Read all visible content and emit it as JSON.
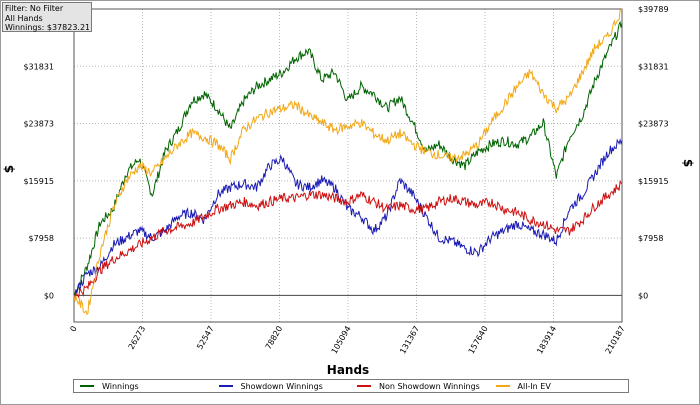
{
  "info": {
    "filter": "Filter: No Filter",
    "hands": "All Hands",
    "winnings": "Winnings: $37823.21"
  },
  "chart_data": {
    "type": "line",
    "xlabel": "Hands",
    "ylabel_left": "$",
    "ylabel_right": "$",
    "xlim": [
      0,
      210187
    ],
    "ylim": [
      -3700,
      39789
    ],
    "x_ticks": [
      0,
      26273,
      52547,
      78820,
      105094,
      131367,
      157640,
      183914,
      210187
    ],
    "y_ticks_left": [
      "$0",
      "$7958",
      "$15915",
      "$23873",
      "$31831"
    ],
    "y_ticks_right": [
      "$0",
      "$7958",
      "$15915",
      "$23873",
      "$31831",
      "$39789"
    ],
    "y_tick_values_left": [
      0,
      7958,
      15915,
      23873,
      31831
    ],
    "y_tick_values_right": [
      0,
      7958,
      15915,
      23873,
      31831,
      39789
    ],
    "grid": true,
    "legend_position": "bottom",
    "x": [
      0,
      5000,
      10000,
      15000,
      20000,
      25000,
      30000,
      35000,
      40000,
      45000,
      50000,
      55000,
      60000,
      65000,
      70000,
      75000,
      80000,
      85000,
      90000,
      95000,
      100000,
      105000,
      110000,
      115000,
      120000,
      125000,
      130000,
      135000,
      140000,
      145000,
      150000,
      155000,
      160000,
      165000,
      170000,
      175000,
      180000,
      185000,
      190000,
      195000,
      200000,
      205000,
      210187
    ],
    "series": [
      {
        "name": "Winnings",
        "color": "#006400",
        "values": [
          0,
          4000,
          10000,
          12000,
          17000,
          19000,
          14000,
          20000,
          23000,
          27000,
          28000,
          26000,
          23000,
          27000,
          29000,
          30000,
          31000,
          33000,
          34000,
          30000,
          31000,
          27000,
          29000,
          28000,
          26000,
          27500,
          24000,
          20000,
          21000,
          19000,
          18000,
          20000,
          21000,
          21500,
          21000,
          22000,
          24000,
          16500,
          22000,
          25000,
          30000,
          34000,
          37823
        ]
      },
      {
        "name": "Showdown Winnings",
        "color": "#1c1cb4",
        "values": [
          0,
          3000,
          4000,
          7000,
          8000,
          9000,
          8000,
          9000,
          11000,
          11500,
          10500,
          14000,
          15000,
          15500,
          15000,
          18000,
          19000,
          15500,
          15000,
          16000,
          15000,
          12000,
          11000,
          9000,
          11000,
          16000,
          14000,
          11000,
          8000,
          7500,
          6500,
          6000,
          8000,
          9000,
          10000,
          9000,
          8500,
          7500,
          12000,
          14000,
          17000,
          20000,
          21500
        ]
      },
      {
        "name": "Non Showdown Winnings",
        "color": "#cc1111",
        "values": [
          0,
          1000,
          3500,
          5000,
          6000,
          7000,
          8000,
          9000,
          9500,
          10000,
          11000,
          12000,
          12500,
          13000,
          12500,
          13000,
          13500,
          13500,
          14000,
          14000,
          13500,
          13000,
          14000,
          13000,
          12000,
          12500,
          12000,
          12000,
          13000,
          13500,
          13000,
          12500,
          13000,
          12000,
          11500,
          10500,
          10000,
          9000,
          9000,
          10500,
          12500,
          14000,
          15500
        ]
      },
      {
        "name": "All-In EV",
        "color": "#f2a818",
        "values": [
          0,
          -2500,
          6000,
          12000,
          16000,
          18000,
          17000,
          19000,
          21000,
          22500,
          22000,
          21000,
          19000,
          23000,
          24500,
          25500,
          26000,
          26500,
          25000,
          24000,
          23000,
          23500,
          24000,
          22500,
          21500,
          22500,
          21000,
          20000,
          19500,
          19000,
          19500,
          21000,
          24000,
          26500,
          29000,
          31000,
          28000,
          26000,
          27500,
          31000,
          34500,
          36000,
          39789
        ]
      }
    ]
  }
}
